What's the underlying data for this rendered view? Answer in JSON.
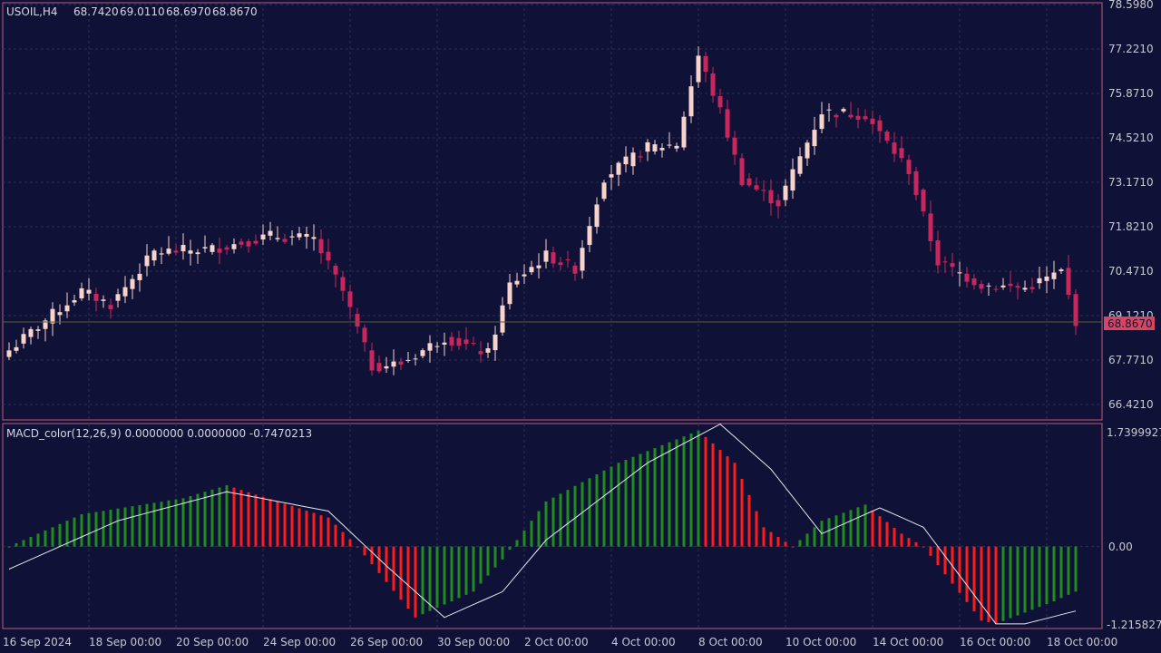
{
  "main_panel": {
    "info": {
      "symbol": "USOIL,H4",
      "open": "68.7420",
      "high": "69.0110",
      "low": "68.6970",
      "close": "68.8670"
    },
    "price_axis_labels": [
      "78.5980",
      "77.2210",
      "75.8710",
      "74.5210",
      "73.1710",
      "71.8210",
      "70.4710",
      "69.1210",
      "67.7710",
      "66.4210"
    ],
    "current_price_label": "68.8670",
    "colors": {
      "bull": "#f7d3cc",
      "bear": "#c8265c",
      "background": "#0f1236",
      "grid": "#2a2f55",
      "border": "#c05a7c"
    }
  },
  "indicator_panel": {
    "info": "MACD_color(12,26,9) 0.0000000 0.0000000 -0.7470213",
    "axis_labels": [
      "1.7399927",
      "0.00",
      "-1.215827"
    ],
    "colors": {
      "rising": "#1e8c1e",
      "falling": "#ff1a1a",
      "signal": "#e8e8f0"
    }
  },
  "time_axis_labels": [
    "16 Sep 2024",
    "18 Sep 00:00",
    "20 Sep 00:00",
    "24 Sep 00:00",
    "26 Sep 00:00",
    "30 Sep 00:00",
    "2 Oct 00:00",
    "4 Oct 00:00",
    "8 Oct 00:00",
    "10 Oct 00:00",
    "14 Oct 00:00",
    "16 Oct 00:00",
    "18 Oct 00:00"
  ],
  "chart_data": {
    "type": "candlestick",
    "symbol": "USOIL",
    "timeframe": "H4",
    "ylim": [
      65.9,
      78.598
    ],
    "anchors": [
      {
        "index": 0,
        "price": 68.0
      },
      {
        "index": 6,
        "price": 69.1
      },
      {
        "index": 10,
        "price": 69.8
      },
      {
        "index": 14,
        "price": 69.4
      },
      {
        "index": 20,
        "price": 71.0
      },
      {
        "index": 28,
        "price": 71.1
      },
      {
        "index": 36,
        "price": 71.5
      },
      {
        "index": 42,
        "price": 71.4
      },
      {
        "index": 46,
        "price": 69.8
      },
      {
        "index": 50,
        "price": 67.5
      },
      {
        "index": 54,
        "price": 67.6
      },
      {
        "index": 60,
        "price": 68.4
      },
      {
        "index": 66,
        "price": 67.9
      },
      {
        "index": 69,
        "price": 70.0
      },
      {
        "index": 74,
        "price": 70.9
      },
      {
        "index": 78,
        "price": 70.5
      },
      {
        "index": 82,
        "price": 73.3
      },
      {
        "index": 88,
        "price": 74.2
      },
      {
        "index": 92,
        "price": 74.3
      },
      {
        "index": 95,
        "price": 77.0
      },
      {
        "index": 98,
        "price": 75.3
      },
      {
        "index": 101,
        "price": 73.2
      },
      {
        "index": 106,
        "price": 72.5
      },
      {
        "index": 112,
        "price": 75.3
      },
      {
        "index": 118,
        "price": 75.2
      },
      {
        "index": 124,
        "price": 73.5
      },
      {
        "index": 128,
        "price": 70.7
      },
      {
        "index": 134,
        "price": 70.0
      },
      {
        "index": 140,
        "price": 69.9
      },
      {
        "index": 145,
        "price": 70.4
      },
      {
        "index": 147,
        "price": 68.9
      }
    ],
    "macd": {
      "ylim": [
        -1.215827,
        1.7399927
      ],
      "histogram_anchors": [
        {
          "index": 0,
          "value": 0.0
        },
        {
          "index": 10,
          "value": 0.5
        },
        {
          "index": 24,
          "value": 0.75
        },
        {
          "index": 30,
          "value": 0.95
        },
        {
          "index": 44,
          "value": 0.45
        },
        {
          "index": 48,
          "value": 0.0
        },
        {
          "index": 56,
          "value": -1.1
        },
        {
          "index": 64,
          "value": -0.7
        },
        {
          "index": 68,
          "value": -0.2
        },
        {
          "index": 74,
          "value": 0.7
        },
        {
          "index": 84,
          "value": 1.3
        },
        {
          "index": 95,
          "value": 1.8
        },
        {
          "index": 100,
          "value": 1.3
        },
        {
          "index": 104,
          "value": 0.3
        },
        {
          "index": 108,
          "value": 0.0
        },
        {
          "index": 112,
          "value": 0.4
        },
        {
          "index": 118,
          "value": 0.65
        },
        {
          "index": 123,
          "value": 0.2
        },
        {
          "index": 126,
          "value": 0.0
        },
        {
          "index": 134,
          "value": -1.15
        },
        {
          "index": 136,
          "value": -1.2
        },
        {
          "index": 144,
          "value": -0.85
        },
        {
          "index": 147,
          "value": -0.7
        }
      ],
      "signal_anchors": [
        {
          "index": 0,
          "value": -0.35
        },
        {
          "index": 15,
          "value": 0.4
        },
        {
          "index": 30,
          "value": 0.85
        },
        {
          "index": 44,
          "value": 0.55
        },
        {
          "index": 52,
          "value": -0.3
        },
        {
          "index": 60,
          "value": -1.1
        },
        {
          "index": 68,
          "value": -0.7
        },
        {
          "index": 74,
          "value": 0.1
        },
        {
          "index": 88,
          "value": 1.3
        },
        {
          "index": 98,
          "value": 1.9
        },
        {
          "index": 105,
          "value": 1.2
        },
        {
          "index": 112,
          "value": 0.2
        },
        {
          "index": 120,
          "value": 0.6
        },
        {
          "index": 126,
          "value": 0.3
        },
        {
          "index": 136,
          "value": -1.2
        },
        {
          "index": 140,
          "value": -1.2
        },
        {
          "index": 147,
          "value": -1.0
        }
      ]
    }
  }
}
